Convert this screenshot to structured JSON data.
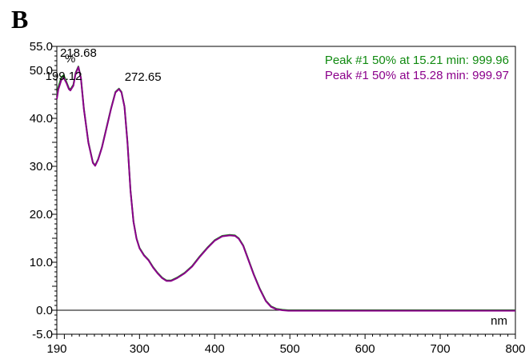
{
  "panel_label": "B",
  "chart_data": {
    "type": "line",
    "title": "",
    "xlabel": "",
    "ylabel": "",
    "x_unit_label": "nm",
    "y_unit_label": "%",
    "xlim": [
      190,
      800
    ],
    "ylim": [
      -5,
      55
    ],
    "x_ticks": [
      190,
      300,
      400,
      500,
      600,
      700,
      800
    ],
    "x_tick_labels": [
      "190",
      "300",
      "400",
      "500",
      "600",
      "700",
      "800"
    ],
    "y_ticks": [
      -5,
      0,
      10,
      20,
      30,
      40,
      50,
      55
    ],
    "y_tick_labels": [
      "-5.0",
      "0.0",
      "10.0",
      "20.0",
      "30.0",
      "40.0",
      "50.0",
      "55.0"
    ],
    "grid": false,
    "legend_position": "top-right",
    "series": [
      {
        "name": "Peak #1 50% at 15.21 min: 999.96",
        "color": "#108a10",
        "x": [
          190,
          192,
          196,
          199.12,
          203,
          206,
          208,
          212,
          215,
          218.68,
          222,
          226,
          232,
          238,
          241,
          245,
          250,
          256,
          262,
          268,
          272.65,
          276,
          280,
          284,
          288,
          292,
          296,
          300,
          306,
          312,
          318,
          324,
          330,
          336,
          342,
          350,
          360,
          370,
          380,
          390,
          400,
          410,
          420,
          427,
          432,
          438,
          445,
          452,
          460,
          468,
          475,
          482,
          490,
          498,
          505,
          520,
          550,
          600,
          650,
          700,
          750,
          800
        ],
        "y": [
          44.5,
          46.5,
          48.5,
          49.0,
          47.5,
          46.3,
          46.0,
          47.0,
          49.5,
          50.8,
          48.5,
          42.0,
          35.0,
          30.8,
          30.2,
          31.5,
          34.0,
          38.0,
          42.0,
          45.5,
          46.2,
          45.5,
          42.5,
          35.0,
          25.0,
          18.5,
          15.0,
          13.0,
          11.5,
          10.5,
          9.0,
          7.8,
          6.8,
          6.2,
          6.2,
          6.8,
          7.8,
          9.2,
          11.2,
          13.0,
          14.6,
          15.5,
          15.7,
          15.6,
          15.0,
          13.5,
          10.5,
          7.5,
          4.5,
          2.0,
          0.8,
          0.3,
          0.1,
          0.0,
          0.0,
          0.0,
          0.0,
          0.0,
          0.0,
          0.0,
          0.0,
          0.0
        ]
      },
      {
        "name": "Peak #1 50% at 15.28 min: 999.97",
        "color": "#8b008b",
        "x": [
          190,
          192,
          196,
          199.12,
          203,
          206,
          208,
          212,
          215,
          218.68,
          222,
          226,
          232,
          238,
          241,
          245,
          250,
          256,
          262,
          268,
          272.65,
          276,
          280,
          284,
          288,
          292,
          296,
          300,
          306,
          312,
          318,
          324,
          330,
          336,
          342,
          350,
          360,
          370,
          380,
          390,
          400,
          410,
          420,
          427,
          432,
          438,
          445,
          452,
          460,
          468,
          475,
          482,
          490,
          498,
          505,
          520,
          550,
          600,
          650,
          700,
          750,
          800
        ],
        "y": [
          44.0,
          46.0,
          48.0,
          48.5,
          47.3,
          46.1,
          45.8,
          46.8,
          49.3,
          50.7,
          48.4,
          41.9,
          34.9,
          30.7,
          30.1,
          31.4,
          33.9,
          37.9,
          41.9,
          45.4,
          46.1,
          45.4,
          42.4,
          34.9,
          24.9,
          18.4,
          14.9,
          12.9,
          11.4,
          10.4,
          8.9,
          7.7,
          6.7,
          6.1,
          6.1,
          6.7,
          7.7,
          9.1,
          11.1,
          12.9,
          14.5,
          15.4,
          15.6,
          15.5,
          14.9,
          13.4,
          10.4,
          7.4,
          4.4,
          1.9,
          0.7,
          0.2,
          0.0,
          -0.1,
          -0.1,
          -0.1,
          -0.1,
          -0.1,
          -0.1,
          -0.1,
          -0.1,
          -0.1
        ]
      }
    ],
    "annotations": [
      {
        "text": "218.68",
        "x": 218.68,
        "y": 50.8
      },
      {
        "text": "199.12",
        "x": 199.12,
        "y": 49.0
      },
      {
        "text": "272.65",
        "x": 272.65,
        "y": 46.2
      }
    ]
  }
}
